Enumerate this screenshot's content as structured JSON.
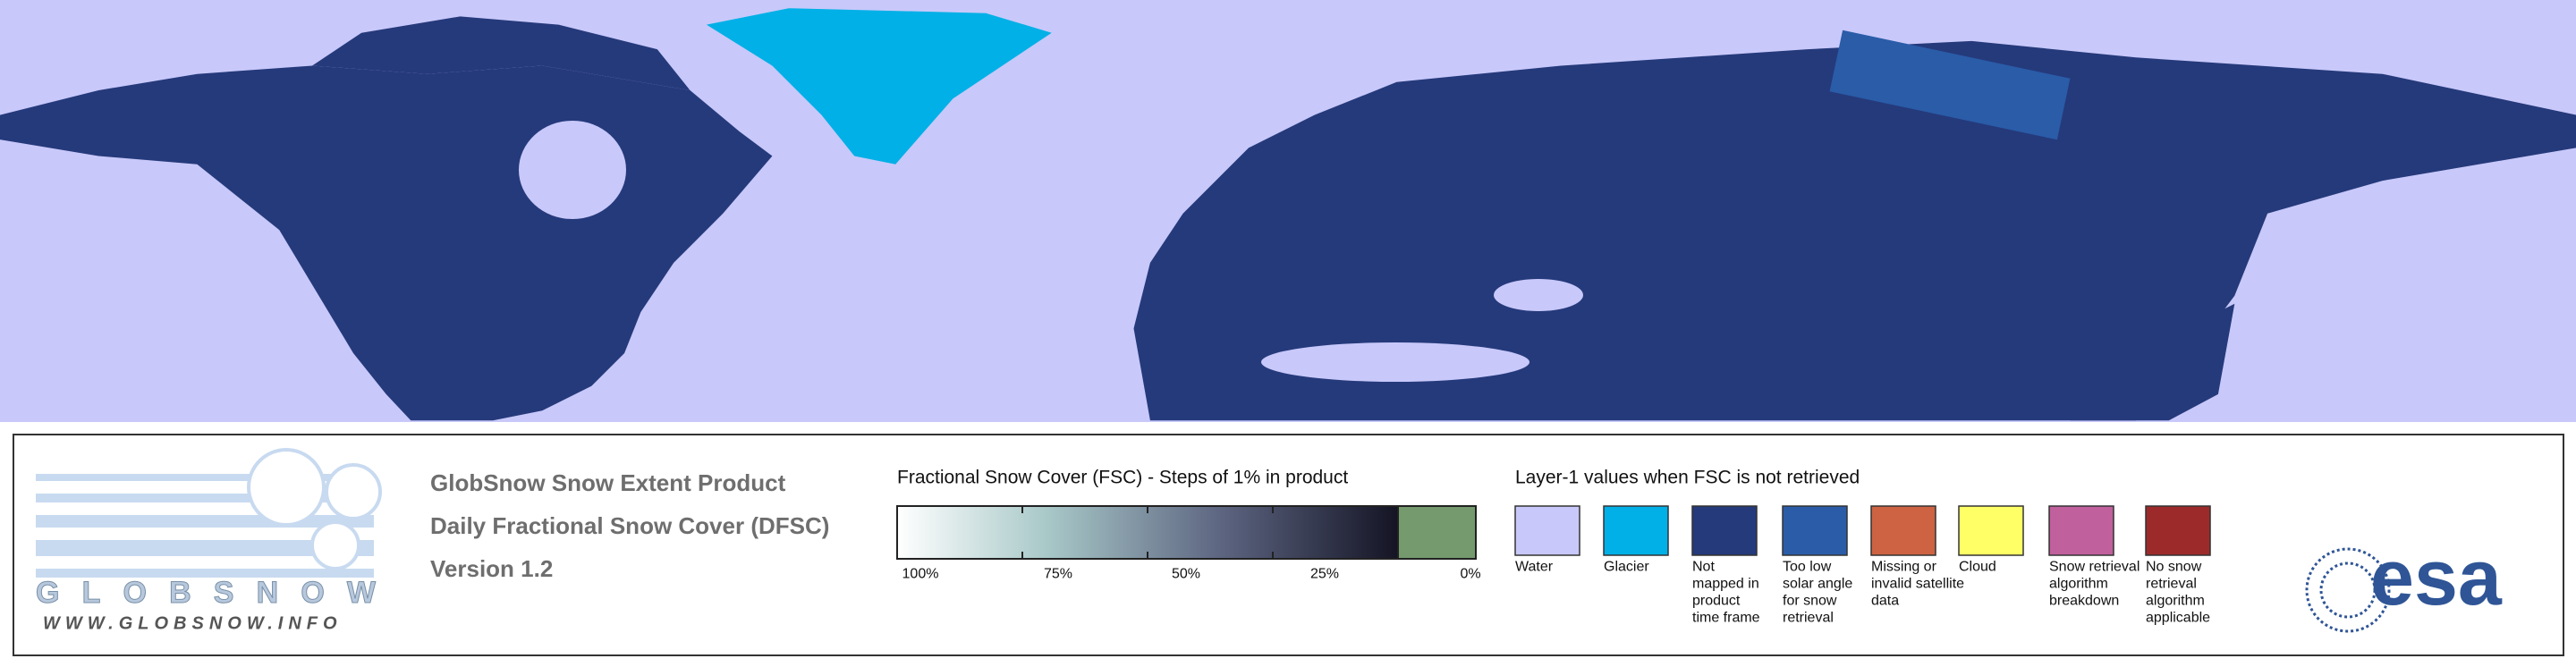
{
  "product": {
    "lines": [
      "GlobSnow Snow Extent Product",
      "Daily Fractional Snow Cover (DFSC)",
      "Version 1.2"
    ]
  },
  "logo": {
    "name": "GLOBSNOW",
    "url": "WWW.GLOBSNOW.INFO",
    "agency": "esa"
  },
  "fsc_legend": {
    "title": "Fractional Snow Cover (FSC) - Steps of 1% in product",
    "ticks": [
      "100%",
      "75%",
      "50%",
      "25%",
      "0%"
    ],
    "no_snow_color": "#749a6e"
  },
  "layer1_legend": {
    "title": "Layer-1 values when FSC is not retrieved",
    "items": [
      {
        "label": [
          "Water"
        ],
        "color": "#c8c8fa"
      },
      {
        "label": [
          "Glacier"
        ],
        "color": "#00b0e6"
      },
      {
        "label": [
          "Not",
          "mapped in",
          "product",
          "time frame"
        ],
        "color": "#253a7b"
      },
      {
        "label": [
          "Too low",
          "solar angle",
          "for snow",
          "retrieval"
        ],
        "color": "#2a5ca8"
      },
      {
        "label": [
          "Missing or",
          "invalid satellite",
          "data"
        ],
        "color": "#cd6342"
      },
      {
        "label": [
          "Cloud"
        ],
        "color": "#ffff66"
      },
      {
        "label": [
          "Snow retrieval",
          "algorithm",
          "breakdown"
        ],
        "color": "#c0609c"
      },
      {
        "label": [
          "No snow",
          "retrieval",
          "algorithm",
          "applicable"
        ],
        "color": "#9c2a2a"
      }
    ]
  }
}
